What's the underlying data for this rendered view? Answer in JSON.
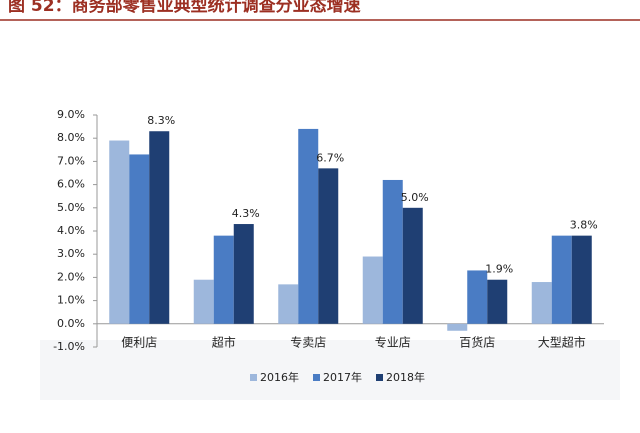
{
  "chart_data": {
    "type": "bar",
    "title": "图 52：商务部零售业典型统计调查分业态增速",
    "categories": [
      "便利店",
      "超市",
      "专卖店",
      "专业店",
      "百货店",
      "大型超市"
    ],
    "series": [
      {
        "name": "2016年",
        "color": "#9db7dc",
        "values": [
          7.9,
          1.9,
          1.7,
          2.9,
          -0.3,
          1.8
        ]
      },
      {
        "name": "2017年",
        "color": "#4a7cc4",
        "values": [
          7.3,
          3.8,
          8.4,
          6.2,
          2.3,
          3.8
        ]
      },
      {
        "name": "2018年",
        "color": "#1f3f73",
        "values": [
          8.3,
          4.3,
          6.7,
          5.0,
          1.9,
          3.8
        ],
        "value_labels": [
          "8.3%",
          "4.3%",
          "6.7%",
          "5.0%",
          "1.9%",
          "3.8%"
        ]
      }
    ],
    "ylim": [
      -1,
      9
    ],
    "yticks": [
      {
        "value": -1,
        "label": "-1.0%"
      },
      {
        "value": 0,
        "label": "0.0%"
      },
      {
        "value": 1,
        "label": "1.0%"
      },
      {
        "value": 2,
        "label": "2.0%"
      },
      {
        "value": 3,
        "label": "3.0%"
      },
      {
        "value": 4,
        "label": "4.0%"
      },
      {
        "value": 5,
        "label": "5.0%"
      },
      {
        "value": 6,
        "label": "6.0%"
      },
      {
        "value": 7,
        "label": "7.0%"
      },
      {
        "value": 8,
        "label": "8.0%"
      },
      {
        "value": 9,
        "label": "9.0%"
      }
    ],
    "grid": false,
    "legend": "bottom"
  }
}
